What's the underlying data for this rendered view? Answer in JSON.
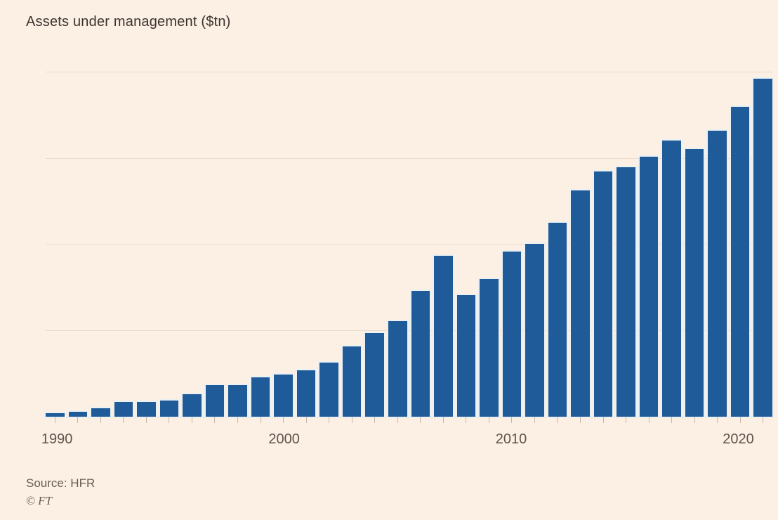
{
  "title": "Assets under management ($tn)",
  "footer": {
    "source": "Source: HFR",
    "copyright": "© FT"
  },
  "colors": {
    "background": "#fcefe3",
    "bar": "#1e5b98",
    "bar_halo": "#e8f0f6",
    "gridline": "#e9dacb",
    "tick": "#c9b9ac",
    "title_text": "#3a332e",
    "axis_text": "#5d544c",
    "source_text": "#6a5c51"
  },
  "chart_data": {
    "type": "bar",
    "title": "Assets under management ($tn)",
    "xlabel": "",
    "ylabel": "Assets under management ($tn)",
    "x": [
      1990,
      1991,
      1992,
      1993,
      1994,
      1995,
      1996,
      1997,
      1998,
      1999,
      2000,
      2001,
      2002,
      2003,
      2004,
      2005,
      2006,
      2007,
      2008,
      2009,
      2010,
      2011,
      2012,
      2013,
      2014,
      2015,
      2016,
      2017,
      2018,
      2019,
      2020,
      2021
    ],
    "values": [
      0.04,
      0.06,
      0.1,
      0.17,
      0.17,
      0.19,
      0.26,
      0.37,
      0.37,
      0.46,
      0.49,
      0.54,
      0.63,
      0.82,
      0.97,
      1.11,
      1.46,
      1.87,
      1.41,
      1.6,
      1.92,
      2.01,
      2.25,
      2.63,
      2.85,
      2.9,
      3.02,
      3.21,
      3.11,
      3.32,
      3.6,
      3.93
    ],
    "xtick_labels": [
      1990,
      2000,
      2010,
      2020
    ],
    "ylim": [
      0,
      4
    ],
    "gridline_values": [
      1,
      2,
      3,
      4
    ],
    "grid": "horizontal only",
    "legend": "none",
    "source": "HFR"
  }
}
